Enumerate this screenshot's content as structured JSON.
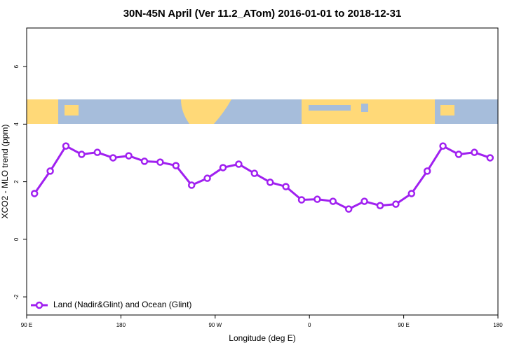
{
  "chart_data": {
    "type": "line",
    "title": "30N-45N April (Ver 11.2_ATom)   2016-01-01 to 2018-12-31",
    "x_label": "Longitude (deg E)",
    "y_label": "XCO2 - MLO trend (ppm)",
    "x": [
      97.5,
      112.5,
      127.5,
      142.5,
      157.5,
      172.5,
      187.5,
      202.5,
      217.5,
      232.5,
      247.5,
      262.5,
      277.5,
      292.5,
      307.5,
      322.5,
      337.5,
      352.5,
      367.5,
      382.5,
      397.5,
      412.5,
      427.5,
      442.5,
      457.5,
      472.5,
      487.5,
      502.5,
      517.5,
      532.5
    ],
    "series": [
      {
        "name": "Land (Nadir&Glint) and Ocean (Glint)",
        "color": "#a020f0",
        "values": [
          1.59,
          2.37,
          3.24,
          2.95,
          3.02,
          2.83,
          2.9,
          2.71,
          2.68,
          2.56,
          1.88,
          2.12,
          2.49,
          2.61,
          2.29,
          1.98,
          1.83,
          1.37,
          1.39,
          1.32,
          1.05,
          1.32,
          1.17,
          1.22,
          1.59,
          2.37,
          3.24,
          2.95,
          3.02,
          2.83
        ]
      }
    ],
    "xlim": [
      90,
      540
    ],
    "xticks": [
      {
        "value": 90,
        "label": "90 E"
      },
      180,
      {
        "value": 270,
        "label": "90 W"
      },
      {
        "value": 360,
        "label": "0"
      },
      {
        "value": 450,
        "label": "90 E"
      },
      {
        "value": 540,
        "label": "180"
      }
    ],
    "ylim": [
      -2.63,
      7.34
    ],
    "yticks": [
      -2,
      0,
      2,
      4,
      6
    ],
    "legend": "bottom-left"
  }
}
